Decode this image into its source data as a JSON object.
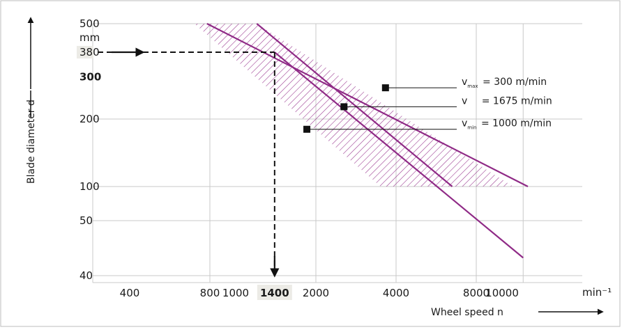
{
  "chart_data": {
    "type": "line",
    "title": "",
    "xlabel": "Wheel speed n",
    "ylabel": "Blade diameter d",
    "x_unit": "min⁻¹",
    "y_unit": "mm",
    "x_scale": "log",
    "y_scale": "log",
    "xlim": [
      400,
      14000
    ],
    "ylim": [
      35,
      500
    ],
    "x_ticks": [
      {
        "value": 400,
        "label": "400"
      },
      {
        "value": 800,
        "label": "800"
      },
      {
        "value": 1000,
        "label": "1000"
      },
      {
        "value": 1400,
        "label": "1400",
        "bold": true
      },
      {
        "value": 2000,
        "label": "2000"
      },
      {
        "value": 4000,
        "label": "4000"
      },
      {
        "value": 8000,
        "label": "8000"
      },
      {
        "value": 10000,
        "label": "10000"
      }
    ],
    "y_ticks": [
      {
        "value": 500,
        "label": "500"
      },
      {
        "value": 380,
        "label": "380",
        "highlight": true
      },
      {
        "value": 300,
        "label": "300",
        "bold": true
      },
      {
        "value": 200,
        "label": "200"
      },
      {
        "value": 100,
        "label": "100"
      },
      {
        "value": 50,
        "label": "50"
      },
      {
        "value": 40,
        "label": "40"
      }
    ],
    "grid": true,
    "series": [
      {
        "name": "vₘₐₓ",
        "speed": "300 m/min",
        "x": [
          1200,
          6500
        ],
        "y": [
          500,
          100
        ]
      },
      {
        "name": "v",
        "speed": "1675 m/min",
        "x": [
          1400,
          12000
        ],
        "y": [
          380,
          43
        ]
      },
      {
        "name": "vₘᵢₙ",
        "speed": "1000 m/min",
        "x": [
          780,
          12500
        ],
        "y": [
          500,
          100
        ]
      }
    ],
    "hatched_band": {
      "lower_edge": {
        "x": [
          700,
          3500
        ],
        "y": [
          500,
          100
        ]
      },
      "upper_edge": {
        "x": [
          1200,
          11000
        ],
        "y": [
          500,
          100
        ]
      }
    },
    "labels": [
      {
        "var": "v",
        "sub": "max",
        "text": "= 300 m/min",
        "point": {
          "x": 3650,
          "y": 270
        }
      },
      {
        "var": "v",
        "sub": "",
        "text": "= 1675 m/min",
        "point": {
          "x": 2550,
          "y": 225
        }
      },
      {
        "var": "v",
        "sub": "min",
        "text": "= 1000 m/min",
        "point": {
          "x": 1850,
          "y": 180
        }
      }
    ],
    "example": {
      "x": 1400,
      "y": 380
    },
    "colors": {
      "curve": "#8f2a86",
      "hatch": "#9d3f94",
      "grid": "#c9c9c9",
      "highlight": "#ecebe6",
      "guide": "#111111"
    }
  }
}
